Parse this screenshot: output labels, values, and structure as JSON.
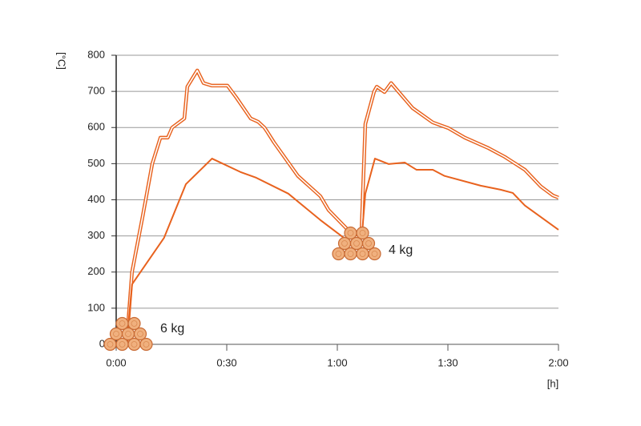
{
  "chart_data": {
    "type": "line",
    "y_label": "[°C]",
    "x_label": "[h]",
    "annotations": [
      "6 kg",
      "4 kg"
    ],
    "xlim": [
      0,
      120
    ],
    "xticks": [
      {
        "value": 0,
        "label": "0:00"
      },
      {
        "value": 30,
        "label": "0:30"
      },
      {
        "value": 60,
        "label": "1:00"
      },
      {
        "value": 90,
        "label": "1:30"
      },
      {
        "value": 120,
        "label": "2:00"
      }
    ],
    "ylim": [
      0,
      800
    ],
    "yticks": [
      0,
      100,
      200,
      300,
      400,
      500,
      600,
      700,
      800
    ],
    "grid": true,
    "series": [
      {
        "color": "#e8621e",
        "style": "double",
        "x": [
          2.8,
          4.3,
          7.2,
          9.8,
          12,
          14,
          15.2,
          18.5,
          19.3,
          22,
          23.7,
          25.9,
          30.2,
          32.6,
          36.5,
          38.5,
          40.2,
          41,
          42.8,
          49.3,
          55.4,
          57.6,
          63.5,
          66.5,
          67.6,
          70,
          70.7,
          72.8,
          74.6,
          77.2,
          80.4,
          85.9,
          90.2,
          94.6,
          101,
          105.4,
          110.9,
          115.2,
          118.5,
          120
        ],
        "values": [
          0,
          200,
          355,
          500,
          572,
          572,
          600,
          625,
          713,
          758,
          723,
          716,
          716,
          683,
          625,
          616,
          600,
          588,
          559,
          466,
          410,
          372,
          310,
          300,
          610,
          700,
          713,
          698,
          723,
          692,
          654,
          614,
          598,
          572,
          543,
          519,
          483,
          437,
          412,
          406
        ]
      },
      {
        "color": "#e8621e",
        "style": "single",
        "x": [
          2.8,
          4.3,
          13,
          18.9,
          26,
          33.7,
          38,
          46.7,
          55.4,
          62,
          66.7,
          67.6,
          70.2,
          73.9,
          78.3,
          81.5,
          85.9,
          89.1,
          98.9,
          104.3,
          107.6,
          110.9,
          120
        ],
        "values": [
          0,
          166,
          295,
          443,
          514,
          477,
          461,
          417,
          344,
          293,
          306,
          417,
          514,
          499,
          503,
          483,
          483,
          466,
          439,
          428,
          419,
          384,
          317
        ]
      }
    ]
  }
}
